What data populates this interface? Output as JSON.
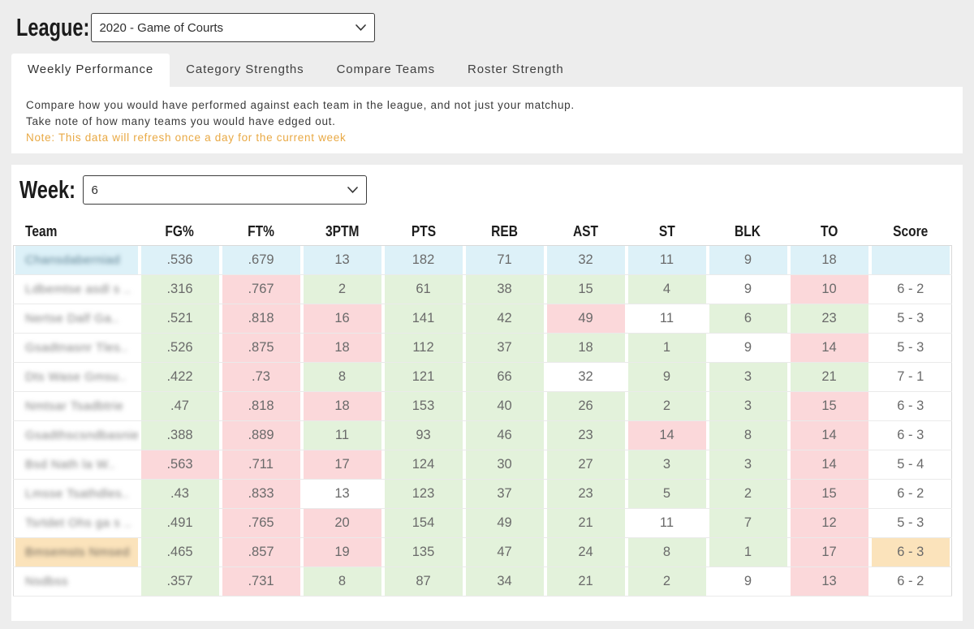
{
  "page": {
    "background": "#ededed",
    "panel_background": "#ffffff"
  },
  "league": {
    "label": "League:",
    "selected_option": "2020 - Game of Courts"
  },
  "tabs": [
    {
      "label": "Weekly Performance",
      "active": true
    },
    {
      "label": "Category Strengths",
      "active": false
    },
    {
      "label": "Compare Teams",
      "active": false
    },
    {
      "label": "Roster Strength",
      "active": false
    }
  ],
  "description": {
    "line1": "Compare how you would have performed against each team in the league, and not just your matchup.",
    "line2": "Take note of how many teams you would have edged out.",
    "note": "Note: This data will refresh once a day for the current week",
    "note_color": "#e9a944"
  },
  "week": {
    "label": "Week:",
    "selected_option": "6"
  },
  "table": {
    "columns": [
      "Team",
      "FG%",
      "FT%",
      "3PTM",
      "PTS",
      "REB",
      "AST",
      "ST",
      "BLK",
      "TO",
      "Score"
    ],
    "cell_colors": {
      "g": "#e3f2db",
      "r": "#fbd8da",
      "w": "#ffffff",
      "b": "#ddf1f8",
      "o": "#fbe3bb"
    },
    "rows": [
      {
        "team_redacted": "Chansdaberniad",
        "team_text_color": "#5b7f90",
        "team_bg": "b",
        "stats": [
          ".536",
          ".679",
          "13",
          "182",
          "71",
          "32",
          "11",
          "9",
          "18"
        ],
        "stat_bgs": [
          "b",
          "b",
          "b",
          "b",
          "b",
          "b",
          "b",
          "b",
          "b"
        ],
        "score": "",
        "score_bg": "b"
      },
      {
        "team_redacted": "Ldbemtse asdl s ..",
        "team_text_color": "#808080",
        "team_bg": "w",
        "stats": [
          ".316",
          ".767",
          "2",
          "61",
          "38",
          "15",
          "4",
          "9",
          "10"
        ],
        "stat_bgs": [
          "g",
          "r",
          "g",
          "g",
          "g",
          "g",
          "g",
          "w",
          "r"
        ],
        "score": "6 - 2",
        "score_bg": "w"
      },
      {
        "team_redacted": "Nertse Dalf Ga..",
        "team_text_color": "#808080",
        "team_bg": "w",
        "stats": [
          ".521",
          ".818",
          "16",
          "141",
          "42",
          "49",
          "11",
          "6",
          "23"
        ],
        "stat_bgs": [
          "g",
          "r",
          "r",
          "g",
          "g",
          "r",
          "w",
          "g",
          "g"
        ],
        "score": "5 - 3",
        "score_bg": "w"
      },
      {
        "team_redacted": "Gsadtnasnr Tles..",
        "team_text_color": "#808080",
        "team_bg": "w",
        "stats": [
          ".526",
          ".875",
          "18",
          "112",
          "37",
          "18",
          "1",
          "9",
          "14"
        ],
        "stat_bgs": [
          "g",
          "r",
          "r",
          "g",
          "g",
          "g",
          "g",
          "w",
          "r"
        ],
        "score": "5 - 3",
        "score_bg": "w"
      },
      {
        "team_redacted": "Dts Wase Gmsu..",
        "team_text_color": "#808080",
        "team_bg": "w",
        "stats": [
          ".422",
          ".73",
          "8",
          "121",
          "66",
          "32",
          "9",
          "3",
          "21"
        ],
        "stat_bgs": [
          "g",
          "r",
          "g",
          "g",
          "g",
          "w",
          "g",
          "g",
          "g"
        ],
        "score": "7 - 1",
        "score_bg": "w"
      },
      {
        "team_redacted": "Nmtsar Tsadbtrie",
        "team_text_color": "#808080",
        "team_bg": "w",
        "stats": [
          ".47",
          ".818",
          "18",
          "153",
          "40",
          "26",
          "2",
          "3",
          "15"
        ],
        "stat_bgs": [
          "g",
          "r",
          "r",
          "g",
          "g",
          "g",
          "g",
          "g",
          "r"
        ],
        "score": "6 - 3",
        "score_bg": "w"
      },
      {
        "team_redacted": "Gsadthscsndbasnie",
        "team_text_color": "#808080",
        "team_bg": "w",
        "stats": [
          ".388",
          ".889",
          "11",
          "93",
          "46",
          "23",
          "14",
          "8",
          "14"
        ],
        "stat_bgs": [
          "g",
          "r",
          "g",
          "g",
          "g",
          "g",
          "r",
          "g",
          "r"
        ],
        "score": "6 - 3",
        "score_bg": "w"
      },
      {
        "team_redacted": "Bsd Nath la W..",
        "team_text_color": "#808080",
        "team_bg": "w",
        "stats": [
          ".563",
          ".711",
          "17",
          "124",
          "30",
          "27",
          "3",
          "3",
          "14"
        ],
        "stat_bgs": [
          "r",
          "r",
          "r",
          "g",
          "g",
          "g",
          "g",
          "g",
          "r"
        ],
        "score": "5 - 4",
        "score_bg": "w"
      },
      {
        "team_redacted": "Lmsse Tsathdles..",
        "team_text_color": "#808080",
        "team_bg": "w",
        "stats": [
          ".43",
          ".833",
          "13",
          "123",
          "37",
          "23",
          "5",
          "2",
          "15"
        ],
        "stat_bgs": [
          "g",
          "r",
          "w",
          "g",
          "g",
          "g",
          "g",
          "g",
          "r"
        ],
        "score": "6 - 2",
        "score_bg": "w"
      },
      {
        "team_redacted": "Tsrtdet Ohs ga s ..",
        "team_text_color": "#808080",
        "team_bg": "w",
        "stats": [
          ".491",
          ".765",
          "20",
          "154",
          "49",
          "21",
          "11",
          "7",
          "12"
        ],
        "stat_bgs": [
          "g",
          "r",
          "r",
          "g",
          "g",
          "g",
          "w",
          "g",
          "r"
        ],
        "score": "5 - 3",
        "score_bg": "w"
      },
      {
        "team_redacted": "Bmsemsts Nmsed",
        "team_text_color": "#6f665a",
        "team_bg": "o",
        "stats": [
          ".465",
          ".857",
          "19",
          "135",
          "47",
          "24",
          "8",
          "1",
          "17"
        ],
        "stat_bgs": [
          "g",
          "r",
          "r",
          "g",
          "g",
          "g",
          "g",
          "g",
          "r"
        ],
        "score": "6 - 3",
        "score_bg": "o"
      },
      {
        "team_redacted": "Nsdbss",
        "team_text_color": "#808080",
        "team_bg": "w",
        "stats": [
          ".357",
          ".731",
          "8",
          "87",
          "34",
          "21",
          "2",
          "9",
          "13"
        ],
        "stat_bgs": [
          "g",
          "r",
          "g",
          "g",
          "g",
          "g",
          "g",
          "w",
          "r"
        ],
        "score": "6 - 2",
        "score_bg": "w"
      }
    ]
  }
}
